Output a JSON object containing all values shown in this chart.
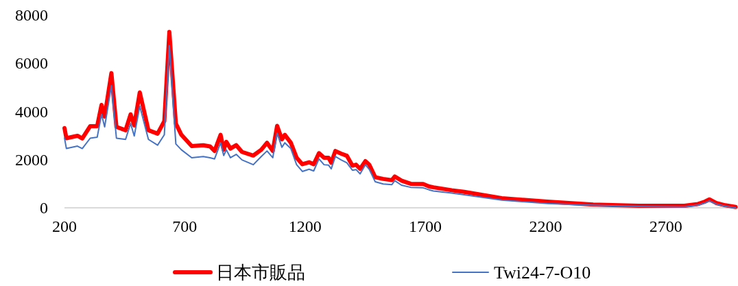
{
  "chart_data": {
    "type": "line",
    "x": [
      200,
      208,
      254,
      274,
      307,
      336,
      354,
      367,
      395,
      416,
      454,
      475,
      490,
      513,
      549,
      587,
      615,
      636,
      663,
      686,
      729,
      777,
      805,
      824,
      849,
      862,
      873,
      890,
      914,
      938,
      985,
      1018,
      1042,
      1066,
      1084,
      1104,
      1116,
      1141,
      1165,
      1189,
      1217,
      1236,
      1258,
      1279,
      1298,
      1309,
      1326,
      1350,
      1374,
      1397,
      1412,
      1429,
      1451,
      1467,
      1492,
      1525,
      1561,
      1573,
      1601,
      1639,
      1691,
      1715,
      1734,
      1810,
      1862,
      2018,
      2208,
      2398,
      2587,
      2777,
      2834,
      2862,
      2881,
      2909,
      2947,
      2990
    ],
    "series": [
      {
        "name": "日本市販品",
        "color": "#ff0000",
        "values": [
          3310,
          2890,
          2990,
          2880,
          3390,
          3390,
          4270,
          3790,
          5590,
          3360,
          3220,
          3880,
          3420,
          4790,
          3220,
          3080,
          3600,
          7300,
          3500,
          3030,
          2560,
          2600,
          2550,
          2360,
          3030,
          2410,
          2740,
          2460,
          2600,
          2320,
          2170,
          2410,
          2700,
          2360,
          3400,
          2840,
          3030,
          2700,
          2080,
          1810,
          1890,
          1810,
          2270,
          2080,
          2080,
          1870,
          2360,
          2250,
          2160,
          1750,
          1790,
          1620,
          1940,
          1790,
          1270,
          1200,
          1150,
          1300,
          1130,
          1000,
          990,
          890,
          850,
          730,
          660,
          400,
          256,
          134,
          85,
          85,
          160,
          256,
          350,
          200,
          105,
          37
        ]
      },
      {
        "name": "Twi24-7-O10",
        "color": "#4472c4",
        "values": [
          2900,
          2460,
          2560,
          2460,
          2890,
          2930,
          3880,
          3360,
          5070,
          2890,
          2840,
          3500,
          2980,
          4220,
          2840,
          2600,
          3030,
          6730,
          2650,
          2410,
          2080,
          2130,
          2080,
          2030,
          2700,
          2170,
          2410,
          2080,
          2220,
          1990,
          1790,
          2130,
          2360,
          2080,
          3100,
          2510,
          2700,
          2460,
          1790,
          1510,
          1600,
          1530,
          2030,
          1790,
          1770,
          1620,
          2130,
          1990,
          1870,
          1560,
          1590,
          1410,
          1790,
          1600,
          1080,
          990,
          960,
          1130,
          940,
          850,
          830,
          750,
          700,
          610,
          540,
          320,
          180,
          105,
          57,
          37,
          114,
          200,
          290,
          160,
          66,
          0
        ]
      }
    ],
    "xlim": [
      200,
      3000
    ],
    "ylim": [
      0,
      8000
    ],
    "xticks": [
      200,
      700,
      1200,
      1700,
      2200,
      2700
    ],
    "yticks": [
      0,
      2000,
      4000,
      6000,
      8000
    ],
    "grid": false,
    "legend": "bottom"
  }
}
